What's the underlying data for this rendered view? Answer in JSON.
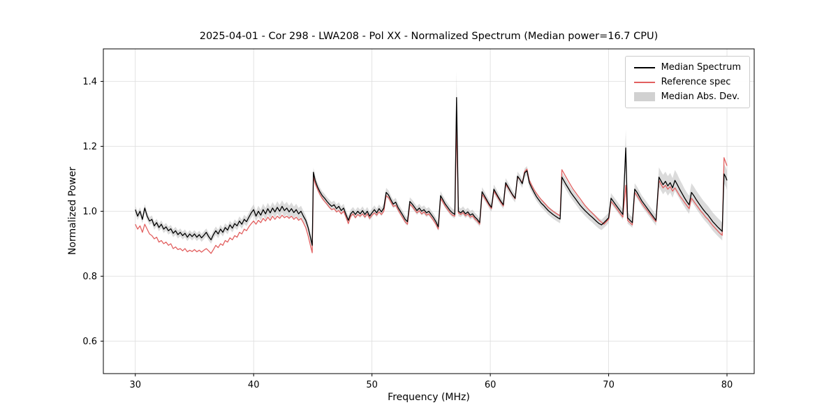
{
  "chart_data": {
    "type": "line",
    "title": "2025-04-01 - Cor 298 - LWA208 - Pol XX - Normalized Spectrum (Median power=16.7 CPU)",
    "xlabel": "Frequency (MHz)",
    "ylabel": "Normalized Power",
    "grid": true,
    "legend_position": "upper right",
    "x_axis": {
      "min": 27.3,
      "max": 82.3,
      "ticks": [
        30,
        40,
        50,
        60,
        70,
        80
      ]
    },
    "y_axis": {
      "min": 0.5,
      "max": 1.5,
      "ticks": [
        0.6,
        0.8,
        1.0,
        1.2,
        1.4
      ]
    },
    "series": [
      {
        "name": "Median Spectrum",
        "color": "#000000",
        "type": "line"
      },
      {
        "name": "Reference spec",
        "color": "#e26060",
        "type": "line"
      },
      {
        "name": "Median Abs. Dev.",
        "color": "#bdbdbd",
        "type": "band",
        "opacity": 0.55
      }
    ],
    "points_format": [
      "frequency_mhz",
      "median",
      "reference",
      "mad"
    ],
    "points": [
      [
        30.0,
        1.005,
        0.96,
        0.012
      ],
      [
        30.2,
        0.985,
        0.945,
        0.012
      ],
      [
        30.4,
        1.0,
        0.955,
        0.012
      ],
      [
        30.6,
        0.975,
        0.935,
        0.012
      ],
      [
        30.8,
        1.01,
        0.96,
        0.012
      ],
      [
        31.0,
        0.985,
        0.945,
        0.012
      ],
      [
        31.2,
        0.97,
        0.93,
        0.012
      ],
      [
        31.4,
        0.975,
        0.925,
        0.012
      ],
      [
        31.6,
        0.955,
        0.915,
        0.012
      ],
      [
        31.8,
        0.965,
        0.92,
        0.012
      ],
      [
        32.0,
        0.95,
        0.905,
        0.012
      ],
      [
        32.2,
        0.96,
        0.91,
        0.012
      ],
      [
        32.4,
        0.945,
        0.9,
        0.012
      ],
      [
        32.6,
        0.952,
        0.905,
        0.012
      ],
      [
        32.8,
        0.94,
        0.895,
        0.012
      ],
      [
        33.0,
        0.946,
        0.9,
        0.012
      ],
      [
        33.2,
        0.932,
        0.885,
        0.012
      ],
      [
        33.4,
        0.94,
        0.89,
        0.012
      ],
      [
        33.6,
        0.928,
        0.882,
        0.012
      ],
      [
        33.8,
        0.935,
        0.885,
        0.012
      ],
      [
        34.0,
        0.925,
        0.878,
        0.012
      ],
      [
        34.2,
        0.932,
        0.885,
        0.012
      ],
      [
        34.4,
        0.92,
        0.875,
        0.012
      ],
      [
        34.6,
        0.93,
        0.88,
        0.012
      ],
      [
        34.8,
        0.922,
        0.876,
        0.012
      ],
      [
        35.0,
        0.93,
        0.882,
        0.012
      ],
      [
        35.2,
        0.92,
        0.875,
        0.012
      ],
      [
        35.4,
        0.928,
        0.88,
        0.012
      ],
      [
        35.6,
        0.918,
        0.874,
        0.012
      ],
      [
        35.8,
        0.926,
        0.88,
        0.012
      ],
      [
        36.0,
        0.935,
        0.885,
        0.012
      ],
      [
        36.2,
        0.922,
        0.878,
        0.012
      ],
      [
        36.4,
        0.912,
        0.87,
        0.012
      ],
      [
        36.6,
        0.928,
        0.882,
        0.012
      ],
      [
        36.8,
        0.94,
        0.895,
        0.013
      ],
      [
        37.0,
        0.93,
        0.888,
        0.013
      ],
      [
        37.2,
        0.945,
        0.9,
        0.013
      ],
      [
        37.4,
        0.935,
        0.895,
        0.013
      ],
      [
        37.6,
        0.95,
        0.91,
        0.013
      ],
      [
        37.8,
        0.942,
        0.905,
        0.013
      ],
      [
        38.0,
        0.958,
        0.918,
        0.013
      ],
      [
        38.2,
        0.948,
        0.912,
        0.013
      ],
      [
        38.4,
        0.962,
        0.925,
        0.013
      ],
      [
        38.6,
        0.955,
        0.92,
        0.013
      ],
      [
        38.8,
        0.97,
        0.935,
        0.014
      ],
      [
        39.0,
        0.96,
        0.93,
        0.014
      ],
      [
        39.2,
        0.975,
        0.945,
        0.014
      ],
      [
        39.4,
        0.968,
        0.94,
        0.014
      ],
      [
        39.6,
        0.982,
        0.952,
        0.014
      ],
      [
        39.8,
        0.995,
        0.962,
        0.015
      ],
      [
        40.0,
        1.005,
        0.97,
        0.016
      ],
      [
        40.2,
        0.985,
        0.96,
        0.016
      ],
      [
        40.4,
        1.0,
        0.972,
        0.017
      ],
      [
        40.6,
        0.988,
        0.965,
        0.017
      ],
      [
        40.8,
        1.005,
        0.978,
        0.018
      ],
      [
        41.0,
        0.992,
        0.97,
        0.018
      ],
      [
        41.2,
        1.008,
        0.982,
        0.018
      ],
      [
        41.4,
        0.995,
        0.972,
        0.018
      ],
      [
        41.6,
        1.01,
        0.985,
        0.018
      ],
      [
        41.8,
        0.998,
        0.975,
        0.018
      ],
      [
        42.0,
        1.012,
        0.985,
        0.019
      ],
      [
        42.2,
        1.0,
        0.978,
        0.019
      ],
      [
        42.4,
        1.015,
        0.988,
        0.019
      ],
      [
        42.6,
        1.002,
        0.98,
        0.019
      ],
      [
        42.8,
        1.01,
        0.985,
        0.019
      ],
      [
        43.0,
        0.998,
        0.978,
        0.019
      ],
      [
        43.2,
        1.008,
        0.985,
        0.019
      ],
      [
        43.4,
        0.996,
        0.975,
        0.018
      ],
      [
        43.6,
        1.005,
        0.982,
        0.018
      ],
      [
        43.8,
        0.992,
        0.972,
        0.018
      ],
      [
        44.0,
        1.0,
        0.978,
        0.017
      ],
      [
        44.2,
        0.985,
        0.965,
        0.016
      ],
      [
        44.4,
        0.972,
        0.95,
        0.015
      ],
      [
        44.6,
        0.95,
        0.925,
        0.014
      ],
      [
        44.8,
        0.92,
        0.895,
        0.013
      ],
      [
        44.95,
        0.895,
        0.872,
        0.013
      ],
      [
        45.05,
        1.12,
        1.105,
        0.014
      ],
      [
        45.2,
        1.095,
        1.085,
        0.014
      ],
      [
        45.4,
        1.075,
        1.068,
        0.013
      ],
      [
        45.6,
        1.06,
        1.052,
        0.013
      ],
      [
        45.8,
        1.048,
        1.04,
        0.013
      ],
      [
        46.0,
        1.04,
        1.03,
        0.013
      ],
      [
        46.2,
        1.03,
        1.022,
        0.013
      ],
      [
        46.4,
        1.022,
        1.012,
        0.013
      ],
      [
        46.6,
        1.015,
        1.005,
        0.013
      ],
      [
        46.8,
        1.02,
        1.008,
        0.013
      ],
      [
        47.0,
        1.008,
        0.998,
        0.013
      ],
      [
        47.2,
        1.015,
        1.002,
        0.013
      ],
      [
        47.4,
        1.002,
        0.992,
        0.013
      ],
      [
        47.6,
        1.01,
        1.0,
        0.013
      ],
      [
        47.8,
        0.99,
        0.982,
        0.013
      ],
      [
        48.0,
        0.972,
        0.962,
        0.013
      ],
      [
        48.2,
        0.992,
        0.985,
        0.013
      ],
      [
        48.4,
        1.0,
        0.992,
        0.013
      ],
      [
        48.6,
        0.99,
        0.98,
        0.013
      ],
      [
        48.8,
        1.0,
        0.99,
        0.013
      ],
      [
        49.0,
        0.992,
        0.985,
        0.013
      ],
      [
        49.2,
        1.002,
        0.992,
        0.013
      ],
      [
        49.4,
        0.99,
        0.982,
        0.013
      ],
      [
        49.6,
        1.0,
        0.992,
        0.013
      ],
      [
        49.8,
        0.985,
        0.978,
        0.013
      ],
      [
        50.0,
        0.995,
        0.988,
        0.013
      ],
      [
        50.2,
        1.005,
        0.995,
        0.013
      ],
      [
        50.4,
        0.995,
        0.988,
        0.013
      ],
      [
        50.6,
        1.008,
        0.998,
        0.013
      ],
      [
        50.8,
        0.998,
        0.99,
        0.013
      ],
      [
        51.0,
        1.01,
        1.0,
        0.013
      ],
      [
        51.2,
        1.058,
        1.048,
        0.014
      ],
      [
        51.4,
        1.05,
        1.042,
        0.014
      ],
      [
        51.6,
        1.035,
        1.028,
        0.013
      ],
      [
        51.8,
        1.022,
        1.015,
        0.013
      ],
      [
        52.0,
        1.028,
        1.018,
        0.013
      ],
      [
        52.2,
        1.012,
        1.005,
        0.013
      ],
      [
        52.4,
        1.0,
        0.992,
        0.013
      ],
      [
        52.6,
        0.988,
        0.98,
        0.013
      ],
      [
        52.8,
        0.975,
        0.968,
        0.013
      ],
      [
        53.0,
        0.968,
        0.96,
        0.013
      ],
      [
        53.2,
        1.03,
        1.022,
        0.013
      ],
      [
        53.4,
        1.022,
        1.015,
        0.013
      ],
      [
        53.6,
        1.012,
        1.005,
        0.013
      ],
      [
        53.8,
        1.002,
        0.995,
        0.013
      ],
      [
        54.0,
        1.01,
        1.002,
        0.013
      ],
      [
        54.2,
        1.0,
        0.992,
        0.013
      ],
      [
        54.4,
        1.005,
        0.998,
        0.013
      ],
      [
        54.6,
        0.995,
        0.988,
        0.013
      ],
      [
        54.8,
        1.0,
        0.992,
        0.013
      ],
      [
        55.0,
        0.99,
        0.982,
        0.013
      ],
      [
        55.2,
        0.98,
        0.972,
        0.013
      ],
      [
        55.4,
        0.968,
        0.96,
        0.013
      ],
      [
        55.6,
        0.952,
        0.945,
        0.013
      ],
      [
        55.8,
        1.048,
        1.04,
        0.014
      ],
      [
        56.0,
        1.035,
        1.028,
        0.013
      ],
      [
        56.2,
        1.022,
        1.015,
        0.013
      ],
      [
        56.4,
        1.012,
        1.005,
        0.013
      ],
      [
        56.6,
        1.002,
        0.995,
        0.013
      ],
      [
        56.8,
        0.995,
        0.988,
        0.013
      ],
      [
        57.0,
        0.99,
        0.985,
        0.013
      ],
      [
        57.15,
        1.35,
        1.27,
        0.08
      ],
      [
        57.3,
        1.0,
        0.995,
        0.015
      ],
      [
        57.5,
        0.995,
        0.99,
        0.013
      ],
      [
        57.7,
        1.002,
        0.996,
        0.013
      ],
      [
        57.9,
        0.992,
        0.986,
        0.013
      ],
      [
        58.1,
        0.998,
        0.992,
        0.013
      ],
      [
        58.3,
        0.988,
        0.982,
        0.013
      ],
      [
        58.5,
        0.992,
        0.986,
        0.013
      ],
      [
        58.7,
        0.982,
        0.976,
        0.013
      ],
      [
        58.9,
        0.975,
        0.97,
        0.013
      ],
      [
        59.1,
        0.965,
        0.96,
        0.013
      ],
      [
        59.3,
        1.06,
        1.052,
        0.014
      ],
      [
        59.5,
        1.048,
        1.042,
        0.014
      ],
      [
        59.7,
        1.035,
        1.03,
        0.013
      ],
      [
        59.9,
        1.022,
        1.018,
        0.013
      ],
      [
        60.1,
        1.012,
        1.008,
        0.013
      ],
      [
        60.3,
        1.068,
        1.062,
        0.014
      ],
      [
        60.5,
        1.055,
        1.05,
        0.014
      ],
      [
        60.7,
        1.042,
        1.038,
        0.013
      ],
      [
        60.9,
        1.03,
        1.026,
        0.013
      ],
      [
        61.1,
        1.02,
        1.016,
        0.013
      ],
      [
        61.3,
        1.088,
        1.082,
        0.014
      ],
      [
        61.5,
        1.075,
        1.072,
        0.014
      ],
      [
        61.7,
        1.062,
        1.06,
        0.013
      ],
      [
        61.9,
        1.05,
        1.048,
        0.013
      ],
      [
        62.1,
        1.04,
        1.038,
        0.013
      ],
      [
        62.3,
        1.108,
        1.105,
        0.014
      ],
      [
        62.5,
        1.098,
        1.098,
        0.014
      ],
      [
        62.7,
        1.085,
        1.088,
        0.013
      ],
      [
        62.9,
        1.118,
        1.122,
        0.014
      ],
      [
        63.1,
        1.125,
        1.13,
        0.014
      ],
      [
        63.3,
        1.088,
        1.095,
        0.014
      ],
      [
        63.5,
        1.072,
        1.08,
        0.013
      ],
      [
        63.7,
        1.058,
        1.066,
        0.013
      ],
      [
        63.9,
        1.045,
        1.055,
        0.013
      ],
      [
        64.1,
        1.035,
        1.045,
        0.013
      ],
      [
        64.3,
        1.025,
        1.036,
        0.013
      ],
      [
        64.5,
        1.018,
        1.028,
        0.013
      ],
      [
        64.7,
        1.01,
        1.02,
        0.013
      ],
      [
        64.9,
        1.002,
        1.012,
        0.013
      ],
      [
        65.1,
        0.996,
        1.006,
        0.013
      ],
      [
        65.3,
        0.99,
        1.0,
        0.013
      ],
      [
        65.5,
        0.985,
        0.995,
        0.013
      ],
      [
        65.7,
        0.98,
        0.99,
        0.013
      ],
      [
        65.9,
        0.976,
        0.986,
        0.013
      ],
      [
        66.05,
        1.105,
        1.128,
        0.016
      ],
      [
        66.2,
        1.095,
        1.118,
        0.016
      ],
      [
        66.4,
        1.082,
        1.105,
        0.016
      ],
      [
        66.6,
        1.07,
        1.092,
        0.016
      ],
      [
        66.8,
        1.058,
        1.08,
        0.016
      ],
      [
        67.0,
        1.048,
        1.068,
        0.016
      ],
      [
        67.2,
        1.038,
        1.058,
        0.016
      ],
      [
        67.4,
        1.028,
        1.048,
        0.016
      ],
      [
        67.6,
        1.018,
        1.038,
        0.016
      ],
      [
        67.8,
        1.01,
        1.028,
        0.016
      ],
      [
        68.0,
        1.002,
        1.018,
        0.016
      ],
      [
        68.2,
        0.995,
        1.01,
        0.016
      ],
      [
        68.4,
        0.988,
        1.002,
        0.016
      ],
      [
        68.6,
        0.982,
        0.995,
        0.016
      ],
      [
        68.8,
        0.975,
        0.988,
        0.016
      ],
      [
        69.0,
        0.968,
        0.98,
        0.016
      ],
      [
        69.2,
        0.962,
        0.972,
        0.016
      ],
      [
        69.4,
        0.958,
        0.966,
        0.016
      ],
      [
        69.6,
        0.965,
        0.96,
        0.016
      ],
      [
        69.8,
        0.972,
        0.968,
        0.016
      ],
      [
        70.0,
        0.98,
        0.975,
        0.016
      ],
      [
        70.2,
        1.04,
        1.03,
        0.016
      ],
      [
        70.4,
        1.03,
        1.022,
        0.016
      ],
      [
        70.6,
        1.02,
        1.012,
        0.016
      ],
      [
        70.8,
        1.01,
        1.002,
        0.016
      ],
      [
        71.0,
        1.0,
        0.992,
        0.016
      ],
      [
        71.2,
        0.99,
        0.982,
        0.016
      ],
      [
        71.45,
        1.195,
        1.08,
        0.055
      ],
      [
        71.6,
        0.98,
        0.972,
        0.018
      ],
      [
        71.8,
        0.972,
        0.965,
        0.016
      ],
      [
        72.0,
        0.965,
        0.958,
        0.016
      ],
      [
        72.2,
        1.068,
        1.058,
        0.018
      ],
      [
        72.4,
        1.058,
        1.048,
        0.018
      ],
      [
        72.6,
        1.045,
        1.036,
        0.017
      ],
      [
        72.8,
        1.032,
        1.024,
        0.017
      ],
      [
        73.0,
        1.022,
        1.014,
        0.017
      ],
      [
        73.2,
        1.012,
        1.005,
        0.017
      ],
      [
        73.4,
        1.002,
        0.995,
        0.017
      ],
      [
        73.6,
        0.992,
        0.986,
        0.017
      ],
      [
        73.8,
        0.982,
        0.976,
        0.017
      ],
      [
        74.0,
        0.972,
        0.968,
        0.017
      ],
      [
        74.25,
        1.105,
        1.095,
        0.03
      ],
      [
        74.4,
        1.095,
        1.085,
        0.03
      ],
      [
        74.6,
        1.082,
        1.072,
        0.03
      ],
      [
        74.8,
        1.092,
        1.08,
        0.03
      ],
      [
        75.0,
        1.078,
        1.068,
        0.03
      ],
      [
        75.2,
        1.088,
        1.076,
        0.03
      ],
      [
        75.4,
        1.072,
        1.062,
        0.03
      ],
      [
        75.6,
        1.095,
        1.072,
        0.032
      ],
      [
        75.8,
        1.082,
        1.06,
        0.032
      ],
      [
        76.0,
        1.068,
        1.048,
        0.03
      ],
      [
        76.2,
        1.055,
        1.038,
        0.03
      ],
      [
        76.4,
        1.042,
        1.028,
        0.028
      ],
      [
        76.6,
        1.03,
        1.018,
        0.028
      ],
      [
        76.8,
        1.02,
        1.008,
        0.028
      ],
      [
        77.0,
        1.058,
        1.04,
        0.028
      ],
      [
        77.2,
        1.048,
        1.03,
        0.028
      ],
      [
        77.4,
        1.036,
        1.02,
        0.028
      ],
      [
        77.6,
        1.025,
        1.01,
        0.028
      ],
      [
        77.8,
        1.015,
        1.0,
        0.028
      ],
      [
        78.0,
        1.005,
        0.992,
        0.028
      ],
      [
        78.2,
        0.996,
        0.982,
        0.028
      ],
      [
        78.4,
        0.988,
        0.975,
        0.028
      ],
      [
        78.6,
        0.978,
        0.965,
        0.028
      ],
      [
        78.8,
        0.968,
        0.956,
        0.028
      ],
      [
        79.0,
        0.96,
        0.948,
        0.028
      ],
      [
        79.2,
        0.952,
        0.94,
        0.028
      ],
      [
        79.4,
        0.945,
        0.932,
        0.028
      ],
      [
        79.6,
        0.938,
        0.926,
        0.028
      ],
      [
        79.75,
        1.115,
        1.165,
        0.03
      ],
      [
        79.9,
        1.105,
        1.15,
        0.03
      ],
      [
        80.0,
        1.095,
        1.14,
        0.03
      ]
    ]
  }
}
